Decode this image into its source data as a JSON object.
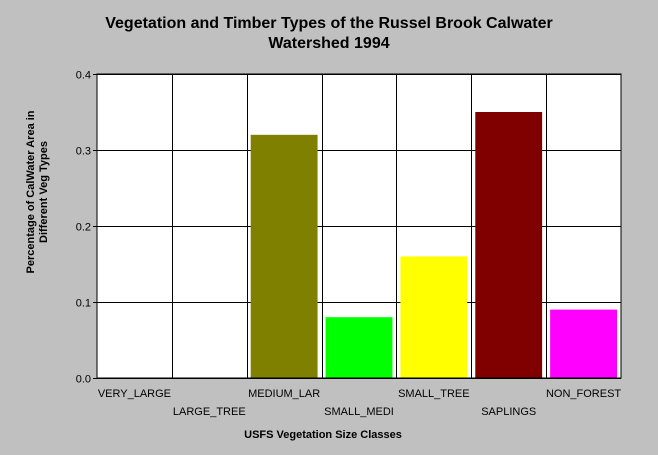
{
  "chart_data": {
    "type": "bar",
    "title_lines": [
      "Vegetation and Timber Types of the Russel Brook Calwater",
      "Watershed 1994"
    ],
    "xlabel": "USFS Vegetation Size Classes",
    "ylabel_lines": [
      "Percentage of CalWater Area in",
      "Different Veg Types"
    ],
    "categories": [
      "VERY_LARGE",
      "LARGE_TREE",
      "MEDIUM_LAR",
      "SMALL_MEDI",
      "SMALL_TREE",
      "SAPLINGS",
      "NON_FOREST"
    ],
    "values": [
      0,
      0,
      0.32,
      0.08,
      0.16,
      0.35,
      0.09
    ],
    "colors": [
      "#000000",
      "#000000",
      "#808000",
      "#00ff00",
      "#ffff00",
      "#800000",
      "#ff00ff"
    ],
    "ylim": [
      0,
      0.4
    ],
    "yticks": [
      "0.0",
      "0.1",
      "0.2",
      "0.3",
      "0.4"
    ],
    "grid": true
  }
}
